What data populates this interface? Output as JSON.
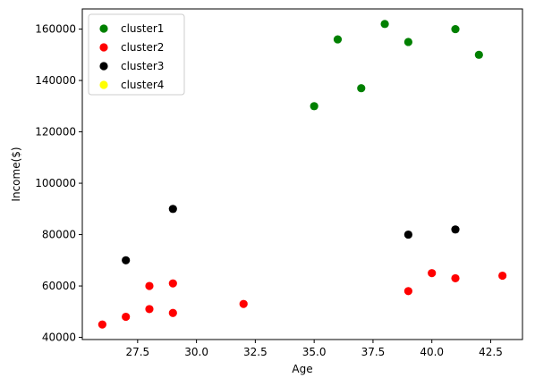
{
  "chart_data": {
    "type": "scatter",
    "title": "",
    "xlabel": "Age",
    "ylabel": "Income($)",
    "xlim": [
      25.15,
      43.85
    ],
    "ylim": [
      39150,
      167850
    ],
    "xticks": [
      "27.5",
      "30.0",
      "32.5",
      "35.0",
      "37.5",
      "40.0",
      "42.5"
    ],
    "xtick_values": [
      27.5,
      30.0,
      32.5,
      35.0,
      37.5,
      40.0,
      42.5
    ],
    "yticks": [
      "40000",
      "60000",
      "80000",
      "100000",
      "120000",
      "140000",
      "160000"
    ],
    "ytick_values": [
      40000,
      60000,
      80000,
      100000,
      120000,
      140000,
      160000
    ],
    "grid": false,
    "legend_position": "top-left",
    "series": [
      {
        "name": "cluster1",
        "color": "#008000",
        "points": [
          [
            35,
            130000
          ],
          [
            36,
            156000
          ],
          [
            37,
            137000
          ],
          [
            38,
            162000
          ],
          [
            39,
            155000
          ],
          [
            41,
            160000
          ],
          [
            42,
            150000
          ]
        ]
      },
      {
        "name": "cluster2",
        "color": "#ff0000",
        "points": [
          [
            26,
            45000
          ],
          [
            27,
            48000
          ],
          [
            28,
            51000
          ],
          [
            28,
            60000
          ],
          [
            29,
            61000
          ],
          [
            29,
            49500
          ],
          [
            32,
            53000
          ],
          [
            39,
            58000
          ],
          [
            40,
            65000
          ],
          [
            41,
            63000
          ],
          [
            43,
            64000
          ]
        ]
      },
      {
        "name": "cluster3",
        "color": "#000000",
        "points": [
          [
            27,
            70000
          ],
          [
            29,
            90000
          ],
          [
            39,
            80000
          ],
          [
            41,
            82000
          ]
        ]
      },
      {
        "name": "cluster4",
        "color": "#ffff00",
        "points": []
      }
    ]
  }
}
